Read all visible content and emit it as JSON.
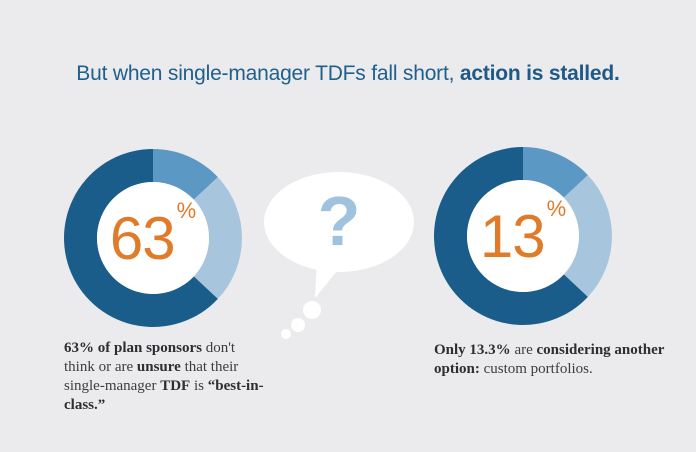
{
  "headline": {
    "normal": "But when single-manager TDFs fall short,",
    "bold": "action is stalled."
  },
  "colors": {
    "dark_blue": "#1b5d8a",
    "mid_blue": "#5b98c4",
    "light_blue": "#a7c6de",
    "orange": "#e07b2a",
    "background": "#ebebed"
  },
  "chart_data": [
    {
      "type": "pie",
      "donut": true,
      "label": "63",
      "unit": "%",
      "segments": [
        {
          "value": 63,
          "color": "#1b5d8a"
        },
        {
          "value": 13,
          "color": "#5b98c4"
        },
        {
          "value": 24,
          "color": "#a7c6de"
        }
      ]
    },
    {
      "type": "pie",
      "donut": true,
      "label": "13",
      "unit": "%",
      "segments": [
        {
          "value": 63,
          "color": "#1b5d8a"
        },
        {
          "value": 13,
          "color": "#5b98c4"
        },
        {
          "value": 24,
          "color": "#a7c6de"
        }
      ]
    }
  ],
  "bubble": {
    "glyph": "?",
    "icon": "question-speech-bubble-icon"
  },
  "captions": {
    "left": {
      "p1": "63% of plan sponsors",
      "p2": " don't think or are ",
      "p3": "unsure",
      "p4": " that their ",
      "p5": "single-manager",
      "p6": " ",
      "p7": "TDF",
      "p8": " is ",
      "p9": "“best-in-class.”"
    },
    "right": {
      "p1": "Only 13.3%",
      "p2": " are ",
      "p3": "considering another option:",
      "p4": " custom portfolios."
    }
  }
}
